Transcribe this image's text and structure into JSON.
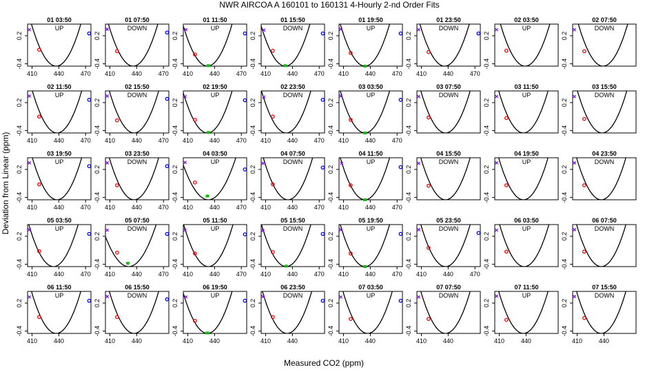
{
  "title": "NWR   AIRCOA A   160101 to 160131   4-Hourly 2-nd Order Fits",
  "xlabel": "Measured CO2 (ppm)",
  "ylabel": "Deviation from Linear (ppm)",
  "colors": {
    "curve": "#000000",
    "p1": "#8000ff",
    "p2": "#ff0000",
    "p3": "#00c000",
    "p4": "#0000ff"
  },
  "chart_data": {
    "type": "scatter",
    "layout": "5 rows x 8 panels",
    "xlim": [
      405,
      476
    ],
    "ylim": [
      -0.45,
      0.45
    ],
    "yticks": [
      -0.4,
      0.2
    ],
    "ytick_labels": [
      "-0.4",
      "0.2"
    ],
    "panels": [
      {
        "label": "01 03:50",
        "dir": "UP",
        "xticks": [
          410,
          440,
          470
        ],
        "vertex": 437,
        "k": 0.00118,
        "points": [
          [
            407,
            0.33,
            "p1"
          ],
          [
            418,
            -0.1,
            "p2"
          ],
          [
            474,
            0.25,
            "p4"
          ]
        ]
      },
      {
        "label": "01 07:50",
        "dir": "DOWN",
        "xticks": [
          410,
          440,
          470
        ],
        "vertex": 436,
        "k": 0.00118,
        "points": [
          [
            407,
            0.34,
            "p1"
          ],
          [
            418,
            -0.13,
            "p2"
          ],
          [
            474,
            0.27,
            "p4"
          ]
        ]
      },
      {
        "label": "01 11:50",
        "dir": "UP",
        "xticks": [
          410,
          440,
          470
        ],
        "vertex": 432,
        "k": 0.00118,
        "points": [
          [
            408,
            0.33,
            "p1"
          ],
          [
            418,
            -0.2,
            "p2"
          ],
          [
            433,
            -0.44,
            "p3"
          ],
          [
            474,
            0.25,
            "p4"
          ]
        ]
      },
      {
        "label": "01 15:50",
        "dir": "DOWN",
        "xticks": [
          410,
          440,
          470
        ],
        "vertex": 432,
        "k": 0.00118,
        "points": [
          [
            408,
            0.32,
            "p1"
          ],
          [
            418,
            -0.12,
            "p2"
          ],
          [
            432,
            -0.44,
            "p3"
          ],
          [
            474,
            0.25,
            "p4"
          ]
        ]
      },
      {
        "label": "01 19:50",
        "dir": "UP",
        "xticks": [
          410,
          440,
          470
        ],
        "vertex": 434,
        "k": 0.00118,
        "points": [
          [
            407,
            0.34,
            "p1"
          ],
          [
            418,
            -0.17,
            "p2"
          ],
          [
            434,
            -0.45,
            "p3"
          ],
          [
            474,
            0.25,
            "p4"
          ]
        ]
      },
      {
        "label": "01 23:50",
        "dir": "DOWN",
        "xticks": [
          410,
          440,
          470
        ],
        "vertex": 436,
        "k": 0.00118,
        "points": [
          [
            407,
            0.33,
            "p1"
          ],
          [
            418,
            -0.15,
            "p2"
          ],
          [
            474,
            0.25,
            "p4"
          ]
        ]
      },
      {
        "label": "02 03:50",
        "dir": "UP",
        "xticks": [],
        "vertex": 439,
        "k": 0.00118,
        "points": [
          [
            407,
            0.33,
            "p1"
          ],
          [
            418,
            -0.12,
            "p2"
          ]
        ]
      },
      {
        "label": "02 07:50",
        "dir": "DOWN",
        "xticks": [],
        "vertex": 439,
        "k": 0.00118,
        "points": [
          [
            407,
            0.33,
            "p1"
          ],
          [
            418,
            -0.13,
            "p2"
          ]
        ]
      },
      {
        "label": "02 11:50",
        "dir": "UP",
        "xticks": [
          410,
          440,
          470
        ],
        "vertex": 438,
        "k": 0.00118,
        "points": [
          [
            407,
            0.34,
            "p1"
          ],
          [
            418,
            -0.1,
            "p2"
          ],
          [
            474,
            0.26,
            "p4"
          ]
        ]
      },
      {
        "label": "02 15:50",
        "dir": "DOWN",
        "xticks": [
          410,
          440,
          470
        ],
        "vertex": 437,
        "k": 0.00118,
        "points": [
          [
            407,
            0.34,
            "p1"
          ],
          [
            418,
            -0.18,
            "p2"
          ],
          [
            474,
            0.28,
            "p4"
          ]
        ]
      },
      {
        "label": "02 19:50",
        "dir": "UP",
        "xticks": [
          410,
          440,
          470
        ],
        "vertex": 432,
        "k": 0.00118,
        "points": [
          [
            407,
            0.33,
            "p1"
          ],
          [
            418,
            -0.17,
            "p2"
          ],
          [
            433,
            -0.44,
            "p3"
          ],
          [
            474,
            0.25,
            "p4"
          ]
        ]
      },
      {
        "label": "02 23:50",
        "dir": "DOWN",
        "xticks": [
          410,
          440,
          470
        ],
        "vertex": 433,
        "k": 0.00118,
        "points": [
          [
            408,
            0.32,
            "p1"
          ],
          [
            418,
            -0.1,
            "p2"
          ],
          [
            474,
            0.26,
            "p4"
          ]
        ]
      },
      {
        "label": "03 03:50",
        "dir": "UP",
        "xticks": [
          410,
          440,
          470
        ],
        "vertex": 434,
        "k": 0.00118,
        "points": [
          [
            407,
            0.34,
            "p1"
          ],
          [
            418,
            -0.17,
            "p2"
          ],
          [
            434,
            -0.45,
            "p3"
          ],
          [
            474,
            0.26,
            "p4"
          ]
        ]
      },
      {
        "label": "03 07:50",
        "dir": "DOWN",
        "xticks": [],
        "vertex": 437,
        "k": 0.00118,
        "points": [
          [
            407,
            0.33,
            "p1"
          ],
          [
            418,
            -0.12,
            "p2"
          ]
        ]
      },
      {
        "label": "03 11:50",
        "dir": "UP",
        "xticks": [],
        "vertex": 437,
        "k": 0.00118,
        "points": [
          [
            407,
            0.33,
            "p1"
          ],
          [
            418,
            -0.13,
            "p2"
          ]
        ]
      },
      {
        "label": "03 15:50",
        "dir": "DOWN",
        "xticks": [],
        "vertex": 438,
        "k": 0.00118,
        "points": [
          [
            407,
            0.33,
            "p1"
          ],
          [
            418,
            -0.15,
            "p2"
          ]
        ]
      },
      {
        "label": "03 19:50",
        "dir": "UP",
        "xticks": [
          410,
          440,
          470
        ],
        "vertex": 438,
        "k": 0.00118,
        "points": [
          [
            407,
            0.34,
            "p1"
          ],
          [
            418,
            -0.12,
            "p2"
          ],
          [
            474,
            0.27,
            "p4"
          ]
        ]
      },
      {
        "label": "03 23:50",
        "dir": "DOWN",
        "xticks": [
          410,
          440,
          470
        ],
        "vertex": 437,
        "k": 0.00118,
        "points": [
          [
            407,
            0.34,
            "p1"
          ],
          [
            418,
            -0.14,
            "p2"
          ],
          [
            474,
            0.27,
            "p4"
          ]
        ]
      },
      {
        "label": "04 03:50",
        "dir": "UP",
        "xticks": [
          410,
          440,
          470
        ],
        "vertex": 433,
        "k": 0.00095,
        "points": [
          [
            407,
            0.35,
            "p1"
          ],
          [
            418,
            -0.08,
            "p2"
          ],
          [
            432,
            -0.37,
            "p3"
          ],
          [
            474,
            0.2,
            "p4"
          ]
        ]
      },
      {
        "label": "04 07:50",
        "dir": "DOWN",
        "xticks": [
          410,
          440,
          470
        ],
        "vertex": 435,
        "k": 0.00118,
        "points": [
          [
            407,
            0.33,
            "p1"
          ],
          [
            418,
            -0.12,
            "p2"
          ],
          [
            474,
            0.24,
            "p4"
          ]
        ]
      },
      {
        "label": "04 11:50",
        "dir": "UP",
        "xticks": [
          410,
          440,
          470
        ],
        "vertex": 434,
        "k": 0.00118,
        "points": [
          [
            408,
            0.33,
            "p1"
          ],
          [
            418,
            -0.14,
            "p2"
          ],
          [
            434,
            -0.45,
            "p3"
          ],
          [
            474,
            0.25,
            "p4"
          ]
        ]
      },
      {
        "label": "04 15:50",
        "dir": "DOWN",
        "xticks": [],
        "vertex": 437,
        "k": 0.00118,
        "points": [
          [
            407,
            0.33,
            "p1"
          ],
          [
            418,
            -0.15,
            "p2"
          ]
        ]
      },
      {
        "label": "04 19:50",
        "dir": "UP",
        "xticks": [],
        "vertex": 437,
        "k": 0.00118,
        "points": [
          [
            407,
            0.34,
            "p1"
          ],
          [
            418,
            -0.14,
            "p2"
          ]
        ]
      },
      {
        "label": "04 23:50",
        "dir": "DOWN",
        "xticks": [],
        "vertex": 437,
        "k": 0.00118,
        "points": [
          [
            407,
            0.34,
            "p1"
          ],
          [
            418,
            -0.14,
            "p2"
          ]
        ]
      },
      {
        "label": "05 03:50",
        "dir": "UP",
        "xticks": [
          410,
          440,
          470
        ],
        "vertex": 434,
        "k": 0.00118,
        "points": [
          [
            407,
            0.34,
            "p1"
          ],
          [
            418,
            -0.12,
            "p2"
          ],
          [
            474,
            0.25,
            "p4"
          ]
        ]
      },
      {
        "label": "05 07:50",
        "dir": "DOWN",
        "xticks": [
          410,
          440,
          470
        ],
        "vertex": 431,
        "k": 0.00095,
        "points": [
          [
            407,
            0.33,
            "p1"
          ],
          [
            418,
            -0.15,
            "p2"
          ],
          [
            430,
            -0.38,
            "p3"
          ],
          [
            474,
            0.25,
            "p4"
          ]
        ]
      },
      {
        "label": "05 11:50",
        "dir": "UP",
        "xticks": [
          410,
          440,
          470
        ],
        "vertex": 433,
        "k": 0.00118,
        "points": [
          [
            407,
            0.33,
            "p1"
          ],
          [
            418,
            -0.17,
            "p2"
          ],
          [
            474,
            0.24,
            "p4"
          ]
        ]
      },
      {
        "label": "05 15:50",
        "dir": "DOWN",
        "xticks": [
          410,
          440,
          470
        ],
        "vertex": 433,
        "k": 0.00118,
        "points": [
          [
            407,
            0.32,
            "p1"
          ],
          [
            418,
            -0.14,
            "p2"
          ],
          [
            433,
            -0.44,
            "p3"
          ],
          [
            474,
            0.25,
            "p4"
          ]
        ]
      },
      {
        "label": "05 19:50",
        "dir": "UP",
        "xticks": [
          410,
          440,
          470
        ],
        "vertex": 434,
        "k": 0.00118,
        "points": [
          [
            407,
            0.34,
            "p1"
          ],
          [
            418,
            -0.17,
            "p2"
          ],
          [
            434,
            -0.45,
            "p3"
          ],
          [
            474,
            0.25,
            "p4"
          ]
        ]
      },
      {
        "label": "05 23:50",
        "dir": "DOWN",
        "xticks": [
          410,
          440,
          470
        ],
        "vertex": 437,
        "k": 0.00118,
        "points": [
          [
            407,
            0.34,
            "p1"
          ],
          [
            418,
            -0.05,
            "p2"
          ],
          [
            474,
            0.27,
            "p4"
          ]
        ]
      },
      {
        "label": "06 03:50",
        "dir": "UP",
        "xticks": [],
        "vertex": 438,
        "k": 0.00118,
        "points": [
          [
            407,
            0.33,
            "p1"
          ],
          [
            418,
            -0.13,
            "p2"
          ]
        ]
      },
      {
        "label": "06 07:50",
        "dir": "DOWN",
        "xticks": [],
        "vertex": 437,
        "k": 0.00118,
        "points": [
          [
            407,
            0.34,
            "p1"
          ],
          [
            418,
            -0.13,
            "p2"
          ]
        ]
      },
      {
        "label": "06 11:50",
        "dir": "UP",
        "xticks": [
          410,
          440
        ],
        "vertex": 437,
        "k": 0.00118,
        "points": [
          [
            407,
            0.33,
            "p1"
          ],
          [
            418,
            -0.1,
            "p2"
          ],
          [
            474,
            0.25,
            "p4"
          ]
        ]
      },
      {
        "label": "06 15:50",
        "dir": "DOWN",
        "xticks": [
          410,
          440
        ],
        "vertex": 437,
        "k": 0.00118,
        "points": [
          [
            407,
            0.34,
            "p1"
          ],
          [
            418,
            -0.1,
            "p2"
          ],
          [
            474,
            0.28,
            "p4"
          ]
        ]
      },
      {
        "label": "06 19:50",
        "dir": "UP",
        "xticks": [
          410,
          440
        ],
        "vertex": 432,
        "k": 0.00118,
        "points": [
          [
            408,
            0.33,
            "p1"
          ],
          [
            418,
            -0.18,
            "p2"
          ],
          [
            432,
            -0.44,
            "p3"
          ],
          [
            474,
            0.25,
            "p4"
          ]
        ]
      },
      {
        "label": "06 23:50",
        "dir": "DOWN",
        "xticks": [
          410,
          440
        ],
        "vertex": 434,
        "k": 0.00118,
        "points": [
          [
            407,
            0.34,
            "p1"
          ],
          [
            418,
            -0.1,
            "p2"
          ],
          [
            474,
            0.25,
            "p4"
          ]
        ]
      },
      {
        "label": "07 03:50",
        "dir": "UP",
        "xticks": [
          410,
          440
        ],
        "vertex": 437,
        "k": 0.00118,
        "points": [
          [
            407,
            0.33,
            "p1"
          ],
          [
            418,
            -0.14,
            "p2"
          ],
          [
            474,
            0.25,
            "p4"
          ]
        ]
      },
      {
        "label": "07 07:50",
        "dir": "DOWN",
        "xticks": [
          410,
          440
        ],
        "vertex": 437,
        "k": 0.00118,
        "points": [
          [
            407,
            0.33,
            "p1"
          ],
          [
            418,
            -0.14,
            "p2"
          ]
        ]
      },
      {
        "label": "07 11:50",
        "dir": "UP",
        "xticks": [
          410,
          440
        ],
        "vertex": 437,
        "k": 0.00118,
        "points": [
          [
            407,
            0.35,
            "p1"
          ],
          [
            418,
            -0.16,
            "p2"
          ]
        ]
      },
      {
        "label": "07 15:50",
        "dir": "DOWN",
        "xticks": [
          410,
          440
        ],
        "vertex": 437,
        "k": 0.00118,
        "points": [
          [
            407,
            0.34,
            "p1"
          ],
          [
            418,
            -0.12,
            "p2"
          ]
        ]
      }
    ]
  }
}
